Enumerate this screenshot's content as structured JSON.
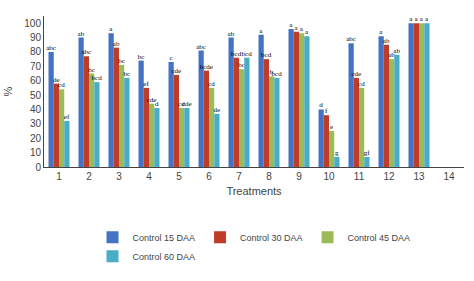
{
  "chart_data": {
    "type": "bar",
    "categories": [
      "1",
      "2",
      "3",
      "4",
      "5",
      "6",
      "7",
      "8",
      "9",
      "10",
      "11",
      "12",
      "13",
      "14"
    ],
    "series": [
      {
        "name": "Control 15 DAA",
        "color": "#4472C4",
        "values": [
          80,
          90,
          93,
          74,
          73,
          81,
          90,
          92,
          96,
          40,
          86,
          91,
          100,
          0
        ],
        "annotations": [
          "abc",
          "ab",
          "a",
          "bc",
          "c",
          "abc",
          "ab",
          "a",
          "a",
          "d",
          "abc",
          "a",
          "a",
          null
        ]
      },
      {
        "name": "Control 30 DAA",
        "color": "#BE3C28",
        "values": [
          58,
          77,
          83,
          55,
          64,
          67,
          76,
          75,
          94,
          36,
          62,
          85,
          100,
          0
        ],
        "annotations": [
          "de",
          "abc",
          "ab",
          "ef",
          "cde",
          "bcde",
          "bcd",
          "bcd",
          "a",
          "f",
          "cde",
          "ab",
          "a",
          null
        ]
      },
      {
        "name": "Control 45 DAA",
        "color": "#9BBB59",
        "values": [
          54,
          65,
          71,
          44,
          41,
          55,
          68,
          63,
          93,
          25,
          55,
          75,
          100,
          0
        ],
        "annotations": [
          "cd",
          "bc",
          "bc",
          "cde",
          "cd",
          "cd",
          "bc",
          "b",
          "a",
          "e",
          "cd",
          "ab",
          "a",
          null
        ]
      },
      {
        "name": "Control 60 DAA",
        "color": "#4BACC6",
        "values": [
          32,
          59,
          62,
          41,
          41,
          37,
          76,
          62,
          91,
          7,
          7,
          78,
          100,
          0
        ],
        "annotations": [
          "ef",
          "bcd",
          "bc",
          "d",
          "cde",
          "de",
          "bcd",
          "bcd",
          "a",
          "g",
          "gf",
          "ab",
          "a",
          null
        ]
      }
    ],
    "xlabel": "Treatments",
    "ylabel": "%",
    "ylim": [
      0,
      105
    ],
    "yticks": [
      0,
      10,
      20,
      30,
      40,
      50,
      60,
      70,
      80,
      90,
      100
    ],
    "grid": false,
    "legend": "bottom"
  }
}
